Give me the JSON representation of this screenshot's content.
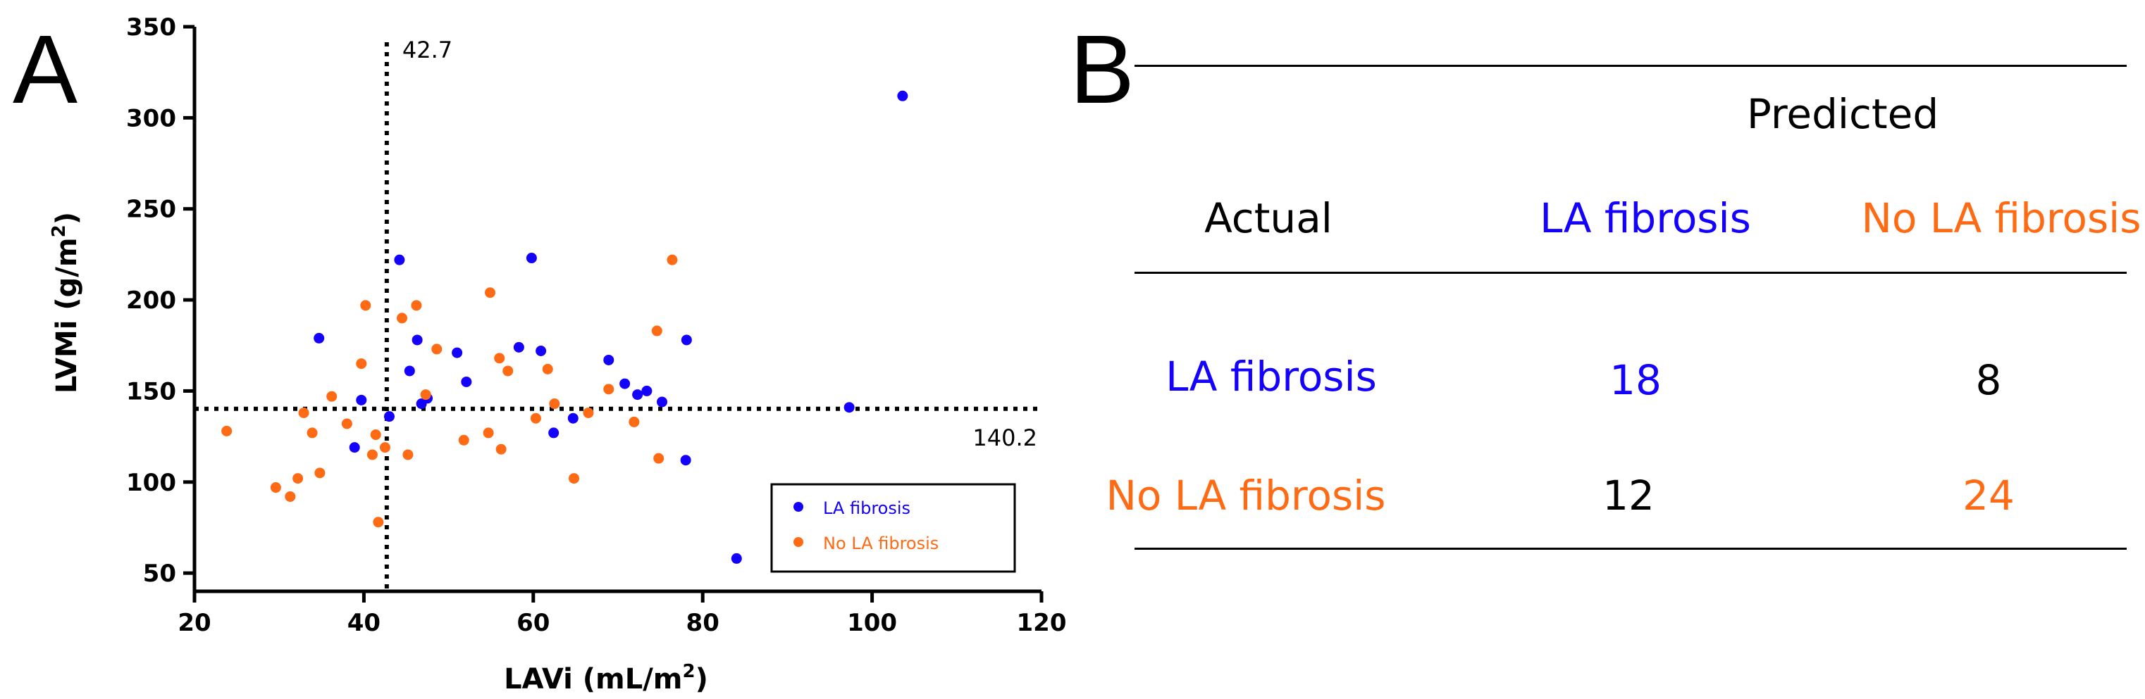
{
  "panel_labels": {
    "a": "A",
    "b": "B"
  },
  "colors": {
    "la_fibrosis": "#1400ff",
    "no_la_fibrosis": "#ff6a14",
    "axis": "#000000"
  },
  "chart_data": {
    "type": "scatter",
    "xlabel_main": "LAVi (mL/m",
    "xlabel_sup": "2",
    "xlabel_end": ")",
    "ylabel_main": "LVMi (g/m",
    "ylabel_sup": "2",
    "ylabel_end": ")",
    "xlim": [
      20,
      120
    ],
    "ylim": [
      40,
      350
    ],
    "xticks": [
      20,
      40,
      60,
      80,
      100,
      120
    ],
    "yticks": [
      50,
      100,
      150,
      200,
      250,
      300,
      350
    ],
    "cutoff_x": 42.7,
    "cutoff_x_label": "42.7",
    "cutoff_y": 140.2,
    "cutoff_y_label": "140.2",
    "legend_position": "bottom-right",
    "series": [
      {
        "name": "LA fibrosis",
        "color": "#1400ff",
        "points": [
          [
            103.6,
            312
          ],
          [
            59.8,
            223
          ],
          [
            44.2,
            222
          ],
          [
            34.7,
            179
          ],
          [
            46.3,
            178
          ],
          [
            78.1,
            178
          ],
          [
            58.3,
            174
          ],
          [
            51.0,
            171
          ],
          [
            60.9,
            172
          ],
          [
            68.9,
            167
          ],
          [
            45.4,
            161
          ],
          [
            52.1,
            155
          ],
          [
            70.8,
            154
          ],
          [
            73.4,
            150
          ],
          [
            72.3,
            148
          ],
          [
            47.5,
            146
          ],
          [
            39.7,
            145
          ],
          [
            46.8,
            143
          ],
          [
            75.2,
            144
          ],
          [
            97.3,
            141
          ],
          [
            43.0,
            136
          ],
          [
            64.7,
            135
          ],
          [
            62.4,
            127
          ],
          [
            38.9,
            119
          ],
          [
            78.0,
            112
          ],
          [
            84.0,
            58
          ]
        ]
      },
      {
        "name": "No LA fibrosis",
        "color": "#ff6a14",
        "points": [
          [
            23.8,
            128
          ],
          [
            29.6,
            97
          ],
          [
            31.3,
            92
          ],
          [
            32.2,
            102
          ],
          [
            32.9,
            138
          ],
          [
            33.9,
            127
          ],
          [
            34.8,
            105
          ],
          [
            36.2,
            147
          ],
          [
            38.0,
            132
          ],
          [
            39.7,
            165
          ],
          [
            40.2,
            197
          ],
          [
            41.0,
            115
          ],
          [
            41.4,
            126
          ],
          [
            41.7,
            78
          ],
          [
            42.5,
            119
          ],
          [
            44.5,
            190
          ],
          [
            45.2,
            115
          ],
          [
            46.2,
            197
          ],
          [
            47.3,
            148
          ],
          [
            48.6,
            173
          ],
          [
            51.8,
            123
          ],
          [
            54.7,
            127
          ],
          [
            54.9,
            204
          ],
          [
            56.0,
            168
          ],
          [
            56.2,
            118
          ],
          [
            57.0,
            161
          ],
          [
            60.3,
            135
          ],
          [
            61.7,
            162
          ],
          [
            62.5,
            143
          ],
          [
            64.8,
            102
          ],
          [
            66.5,
            138
          ],
          [
            68.9,
            151
          ],
          [
            71.9,
            133
          ],
          [
            74.6,
            183
          ],
          [
            74.8,
            113
          ],
          [
            76.4,
            222
          ]
        ]
      }
    ]
  },
  "table": {
    "predicted_header": "Predicted",
    "actual_header": "Actual",
    "col_la_fibrosis": "LA fibrosis",
    "col_no_la_fibrosis": "No LA fibrosis",
    "row_la_fibrosis": "LA fibrosis",
    "row_no_la_fibrosis": "No LA fibrosis",
    "cells": {
      "la_la": "18",
      "la_no": "8",
      "no_la": "12",
      "no_no": "24"
    }
  }
}
